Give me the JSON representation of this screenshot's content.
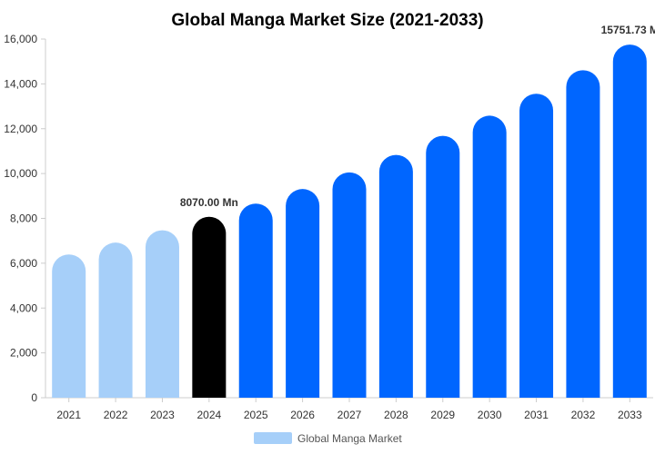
{
  "chart_data": {
    "type": "bar",
    "title": "Global Manga Market Size (2021-2033)",
    "xlabel": "",
    "ylabel": "",
    "categories": [
      "2021",
      "2022",
      "2023",
      "2024",
      "2025",
      "2026",
      "2027",
      "2028",
      "2029",
      "2030",
      "2031",
      "2032",
      "2033"
    ],
    "series": [
      {
        "name": "Global Manga Market",
        "values": [
          6390,
          6920,
          7470,
          8070,
          8660,
          9310,
          10050,
          10830,
          11680,
          12580,
          13560,
          14610,
          15751.73
        ]
      }
    ],
    "ylim": [
      0,
      16000
    ],
    "yticks": [
      "0",
      "2,000",
      "4,000",
      "6,000",
      "8,000",
      "10,000",
      "12,000",
      "14,000",
      "16,000"
    ],
    "grid": false,
    "legend": "bottom",
    "annotations": [
      {
        "category": "2024",
        "text": "8070.00 Mn"
      },
      {
        "category": "2033",
        "text": "15751.73 M"
      }
    ],
    "bar_colors": {
      "historical": "#a6cff9",
      "base_year": "#000000",
      "forecast": "#0066ff"
    },
    "legend_color": "#a6cff9",
    "axis_color": "#cccccc",
    "text_color": "#333333"
  }
}
